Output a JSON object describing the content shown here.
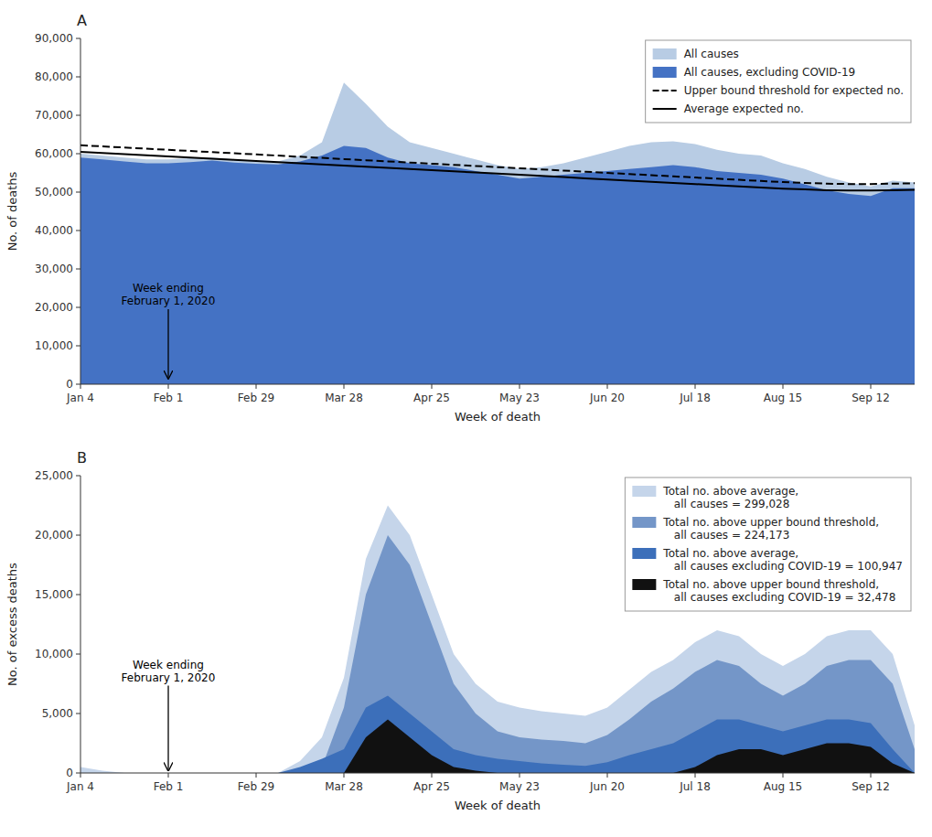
{
  "chart_data": [
    {
      "type": "area",
      "title": "A",
      "xlabel": "Week of death",
      "ylabel": "No. of deaths",
      "x": [
        0,
        1,
        2,
        3,
        4,
        5,
        6,
        7,
        8,
        9,
        10,
        11,
        12,
        13,
        14,
        15,
        16,
        17,
        18,
        19,
        20,
        21,
        22,
        23,
        24,
        25,
        26,
        27,
        28,
        29,
        30,
        31,
        32,
        33,
        34,
        35,
        36,
        37,
        38
      ],
      "xlim": [
        0,
        38
      ],
      "xticks": [
        {
          "value": 0,
          "label": "Jan 4"
        },
        {
          "value": 4,
          "label": "Feb 1"
        },
        {
          "value": 8,
          "label": "Feb 29"
        },
        {
          "value": 12,
          "label": "Mar 28"
        },
        {
          "value": 16,
          "label": "Apr 25"
        },
        {
          "value": 20,
          "label": "May 23"
        },
        {
          "value": 24,
          "label": "Jun 20"
        },
        {
          "value": 28,
          "label": "Jul 18"
        },
        {
          "value": 32,
          "label": "Aug 15"
        },
        {
          "value": 36,
          "label": "Sep 12"
        }
      ],
      "ylim": [
        0,
        90000
      ],
      "yticks": [
        0,
        {
          "value": 10000,
          "label": "10,000"
        },
        {
          "value": 20000,
          "label": "20,000"
        },
        {
          "value": 30000,
          "label": "30,000"
        },
        {
          "value": 40000,
          "label": "40,000"
        },
        {
          "value": 50000,
          "label": "50,000"
        },
        {
          "value": 60000,
          "label": "60,000"
        },
        {
          "value": 70000,
          "label": "70,000"
        },
        {
          "value": 80000,
          "label": "80,000"
        },
        {
          "value": 90000,
          "label": "90,000"
        }
      ],
      "grid": false,
      "legend": "upper right",
      "series": [
        {
          "name": "All causes",
          "type": "area",
          "color": "#b8cce4",
          "values": [
            60000,
            59500,
            59000,
            58500,
            58500,
            58800,
            59000,
            58500,
            58200,
            58000,
            59500,
            63000,
            78500,
            73000,
            67000,
            63000,
            61500,
            60000,
            58500,
            57000,
            56000,
            56500,
            57500,
            59000,
            60500,
            62000,
            63000,
            63200,
            62500,
            61000,
            60000,
            59500,
            57500,
            56000,
            54000,
            52500,
            51500,
            53000,
            52500
          ]
        },
        {
          "name": "All causes, excluding COVID-19",
          "type": "area",
          "color": "#4472c4",
          "values": [
            59000,
            58500,
            58000,
            57500,
            57500,
            57800,
            58200,
            57700,
            57400,
            57200,
            58000,
            59500,
            62000,
            61500,
            59000,
            57500,
            57000,
            56500,
            55500,
            54500,
            53500,
            54000,
            54500,
            55000,
            55500,
            56000,
            56500,
            57000,
            56500,
            55500,
            55000,
            54500,
            53500,
            52000,
            50500,
            49500,
            49000,
            51000,
            51000
          ]
        },
        {
          "name": "Upper bound threshold for expected no.",
          "type": "line",
          "color": "black",
          "line_style": "dashed",
          "values": [
            62200,
            61900,
            61600,
            61300,
            61000,
            60700,
            60400,
            60100,
            59800,
            59500,
            59200,
            58900,
            58600,
            58300,
            58000,
            57700,
            57400,
            57100,
            56800,
            56500,
            56200,
            55900,
            55600,
            55300,
            55000,
            54700,
            54400,
            54100,
            53800,
            53500,
            53200,
            52900,
            52600,
            52400,
            52200,
            52100,
            52100,
            52200,
            52300
          ]
        },
        {
          "name": "Average expected no.",
          "type": "line",
          "color": "black",
          "line_style": "solid",
          "values": [
            60500,
            60200,
            59900,
            59600,
            59300,
            59000,
            58700,
            58400,
            58100,
            57800,
            57500,
            57200,
            56900,
            56600,
            56300,
            56000,
            55700,
            55400,
            55100,
            54800,
            54500,
            54200,
            53900,
            53600,
            53300,
            53000,
            52700,
            52400,
            52100,
            51800,
            51500,
            51200,
            50900,
            50700,
            50500,
            50400,
            50400,
            50500,
            50600
          ]
        }
      ],
      "annotations": [
        {
          "text": "Week ending\nFebruary 1, 2020",
          "x": 4,
          "y": 1500,
          "text_y": 20000
        }
      ]
    },
    {
      "type": "area",
      "title": "B",
      "xlabel": "Week of death",
      "ylabel": "No. of excess deaths",
      "x": [
        0,
        1,
        2,
        3,
        4,
        5,
        6,
        7,
        8,
        9,
        10,
        11,
        12,
        13,
        14,
        15,
        16,
        17,
        18,
        19,
        20,
        21,
        22,
        23,
        24,
        25,
        26,
        27,
        28,
        29,
        30,
        31,
        32,
        33,
        34,
        35,
        36,
        37,
        38
      ],
      "xlim": [
        0,
        38
      ],
      "xticks": [
        {
          "value": 0,
          "label": "Jan 4"
        },
        {
          "value": 4,
          "label": "Feb 1"
        },
        {
          "value": 8,
          "label": "Feb 29"
        },
        {
          "value": 12,
          "label": "Mar 28"
        },
        {
          "value": 16,
          "label": "Apr 25"
        },
        {
          "value": 20,
          "label": "May 23"
        },
        {
          "value": 24,
          "label": "Jun 20"
        },
        {
          "value": 28,
          "label": "Jul 18"
        },
        {
          "value": 32,
          "label": "Aug 15"
        },
        {
          "value": 36,
          "label": "Sep 12"
        }
      ],
      "ylim": [
        0,
        25000
      ],
      "yticks": [
        0,
        {
          "value": 5000,
          "label": "5,000"
        },
        {
          "value": 10000,
          "label": "10,000"
        },
        {
          "value": 15000,
          "label": "15,000"
        },
        {
          "value": 20000,
          "label": "20,000"
        },
        {
          "value": 25000,
          "label": "25,000"
        }
      ],
      "grid": false,
      "legend": "upper right",
      "series": [
        {
          "name": "Total no. above average,\n   all causes = 299,028",
          "type": "area",
          "color": "#c5d5ea",
          "values": [
            500,
            200,
            0,
            0,
            0,
            0,
            0,
            0,
            0,
            0,
            1000,
            3000,
            8000,
            18000,
            22500,
            20000,
            15000,
            10000,
            7500,
            6000,
            5500,
            5200,
            5000,
            4800,
            5500,
            7000,
            8500,
            9500,
            11000,
            12000,
            11500,
            10000,
            9000,
            10000,
            11500,
            12000,
            12000,
            10000,
            4000
          ]
        },
        {
          "name": "Total no. above upper bound threshold,\n   all causes = 224,173",
          "type": "area",
          "color": "#7496c8",
          "values": [
            0,
            0,
            0,
            0,
            0,
            0,
            0,
            0,
            0,
            0,
            0,
            500,
            5500,
            15000,
            20000,
            17500,
            12500,
            7500,
            5000,
            3500,
            3000,
            2800,
            2700,
            2500,
            3200,
            4500,
            6000,
            7100,
            8500,
            9500,
            9000,
            7500,
            6500,
            7500,
            9000,
            9500,
            9500,
            7500,
            2000
          ]
        },
        {
          "name": "Total no. above average,\n   all causes excluding COVID-19 = 100,947",
          "type": "area",
          "color": "#3c6fba",
          "values": [
            0,
            0,
            0,
            0,
            0,
            0,
            0,
            0,
            0,
            0,
            500,
            1200,
            2000,
            5500,
            6500,
            5000,
            3500,
            2000,
            1500,
            1200,
            1000,
            800,
            700,
            600,
            900,
            1500,
            2000,
            2500,
            3500,
            4500,
            4500,
            4000,
            3500,
            4000,
            4500,
            4500,
            4200,
            2000,
            0
          ]
        },
        {
          "name": "Total no. above upper bound threshold,\n   all causes excluding COVID-19 = 32,478",
          "type": "area",
          "color": "#111111",
          "values": [
            0,
            0,
            0,
            0,
            0,
            0,
            0,
            0,
            0,
            0,
            0,
            0,
            0,
            3000,
            4500,
            3000,
            1500,
            500,
            200,
            0,
            0,
            0,
            0,
            0,
            0,
            0,
            0,
            0,
            500,
            1500,
            2000,
            2000,
            1500,
            2000,
            2500,
            2500,
            2200,
            800,
            0
          ]
        }
      ],
      "annotations": [
        {
          "text": "Week ending\nFebruary 1, 2020",
          "x": 4,
          "y": 200,
          "text_y": 7500
        }
      ]
    }
  ]
}
